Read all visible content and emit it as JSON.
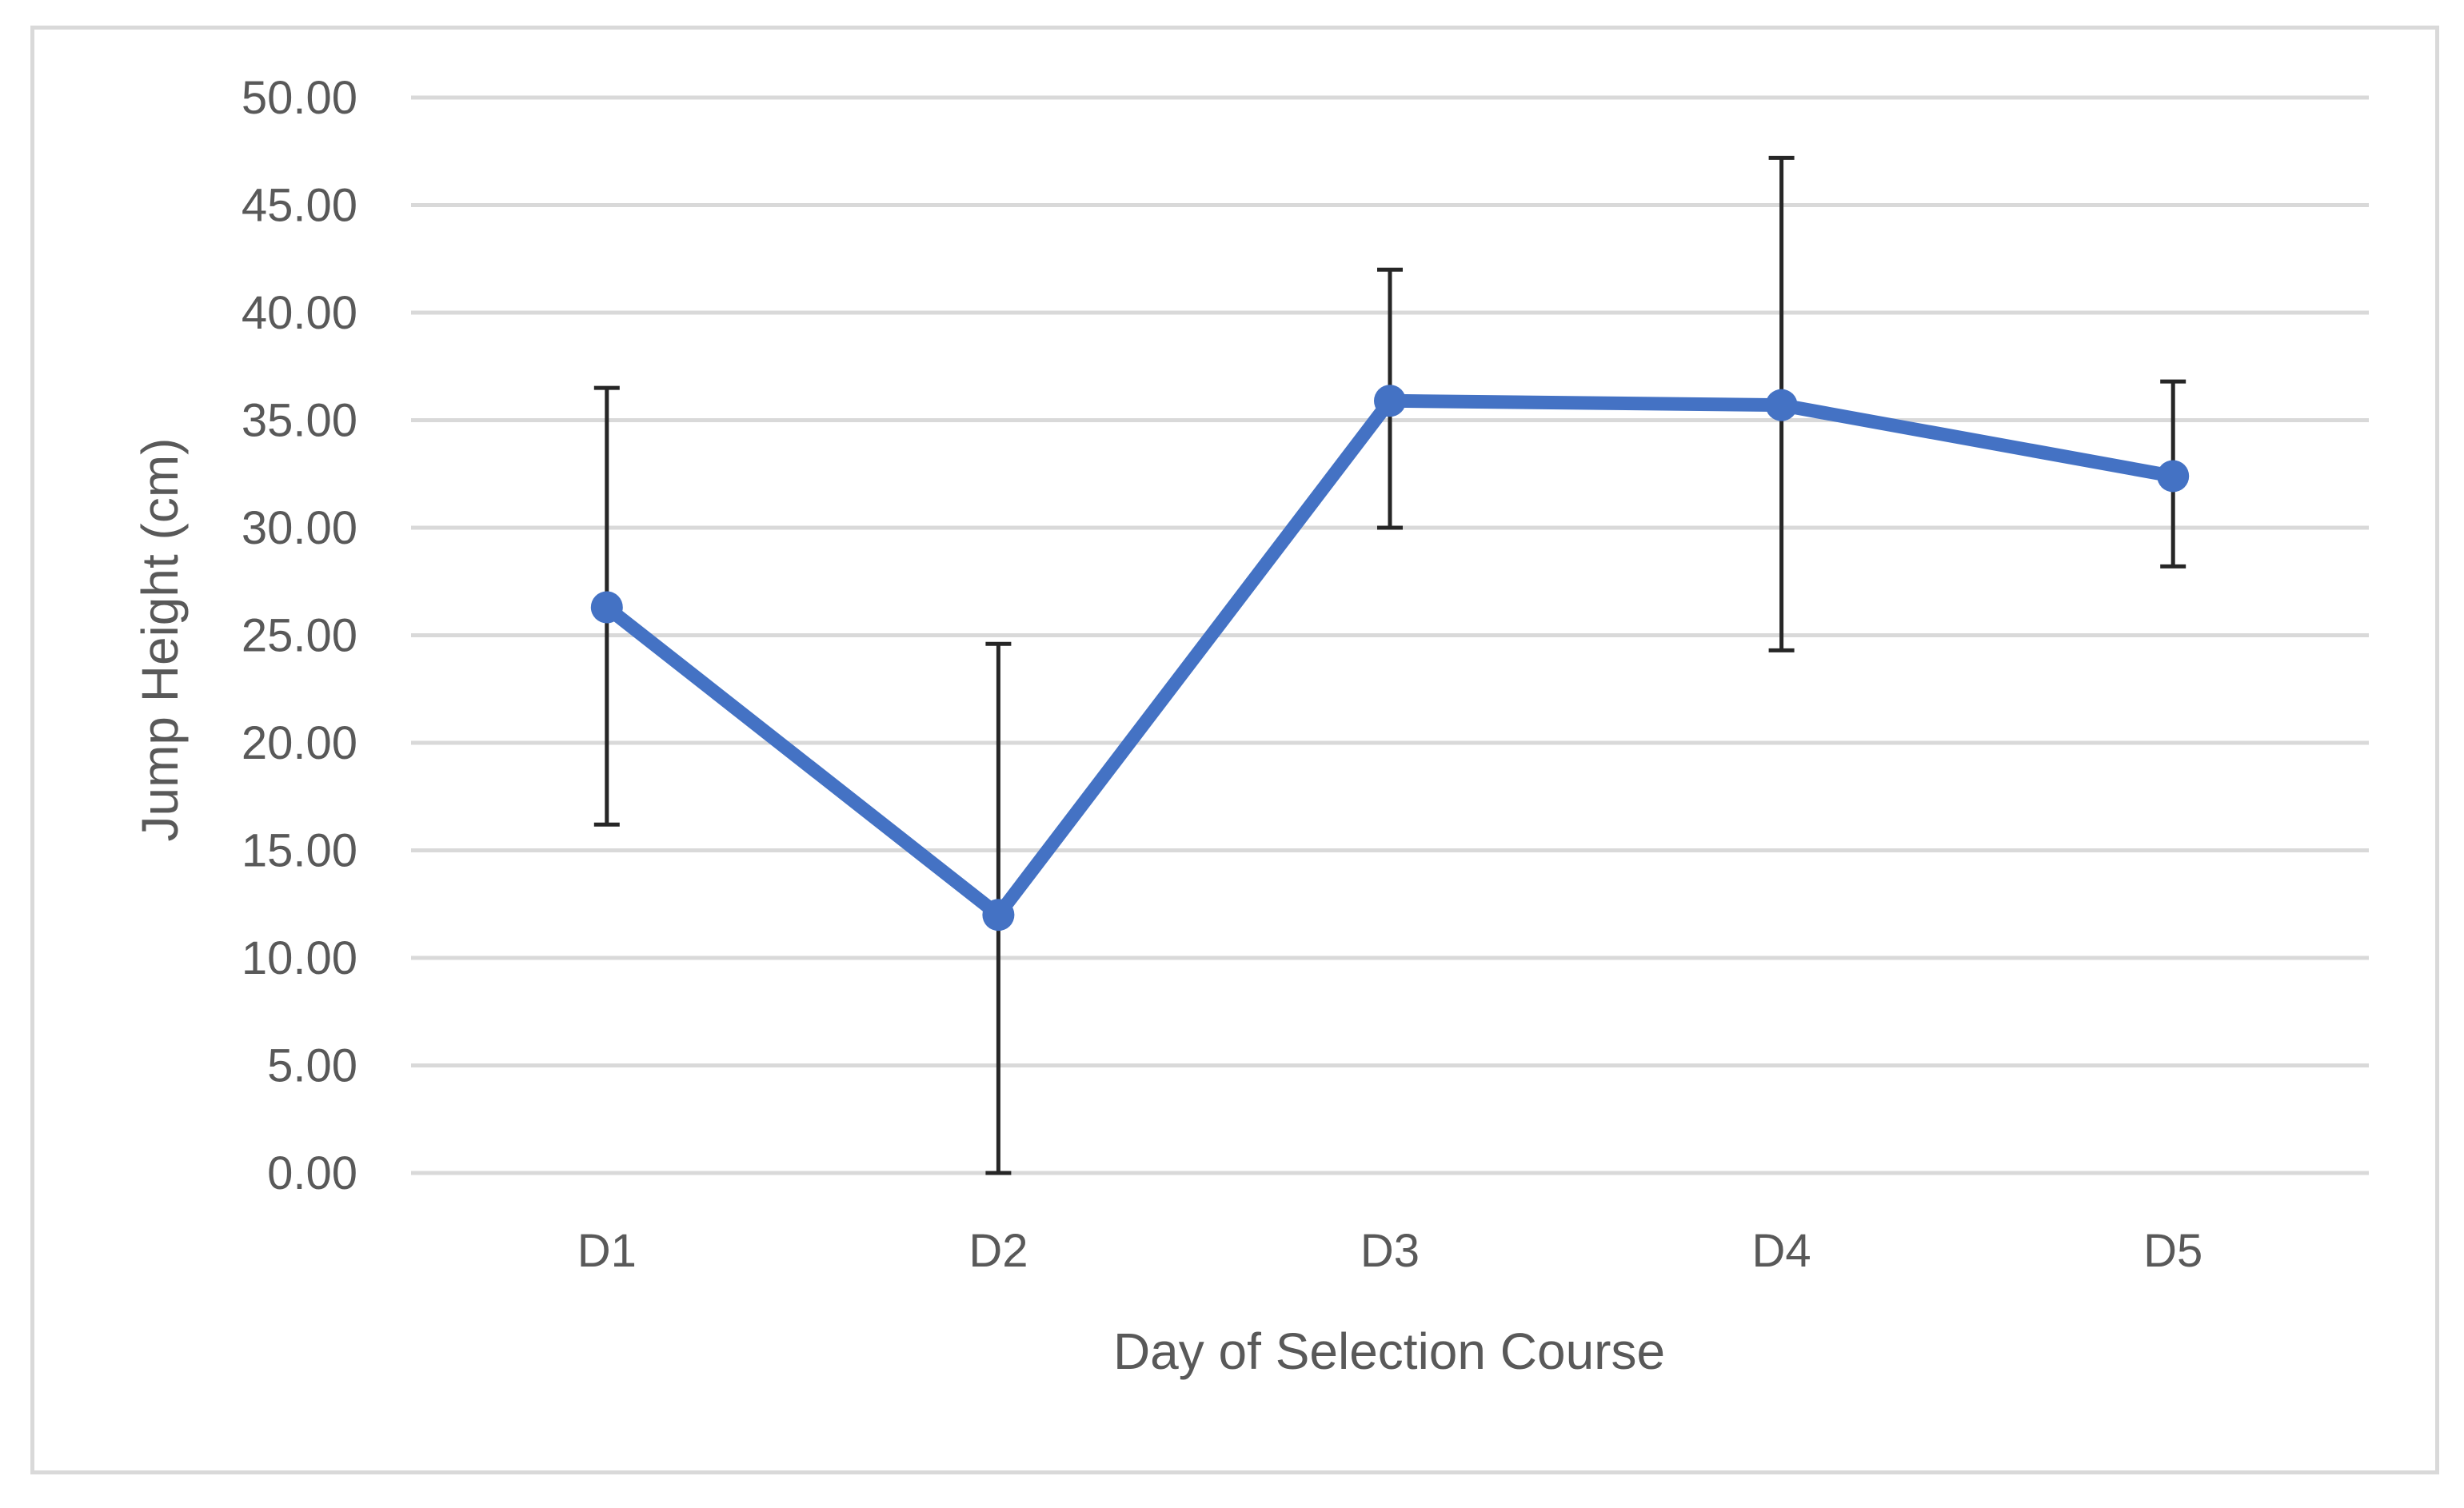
{
  "chart_data": {
    "type": "line",
    "title": "",
    "xlabel": "Day of Selection Course",
    "ylabel": "Jump Height (cm)",
    "categories": [
      "D1",
      "D2",
      "D3",
      "D4",
      "D5"
    ],
    "series": [
      {
        "values": [
          26.3,
          12.0,
          35.9,
          35.7,
          32.4
        ],
        "error_upper": [
          36.5,
          24.6,
          42.0,
          47.2,
          36.8
        ],
        "error_lower": [
          16.2,
          0.0,
          30.0,
          24.3,
          28.2
        ],
        "color": "#4472c4"
      }
    ],
    "ylim": [
      0,
      50
    ],
    "y_ticks": [
      "0.00",
      "5.00",
      "10.00",
      "15.00",
      "20.00",
      "25.00",
      "30.00",
      "35.00",
      "40.00",
      "45.00",
      "50.00"
    ],
    "y_tick_values": [
      0,
      5,
      10,
      15,
      20,
      25,
      30,
      35,
      40,
      45,
      50
    ],
    "grid": true,
    "legend": "none",
    "colors": {
      "line": "#4472c4",
      "error_bar": "#262626",
      "grid": "#d9d9d9",
      "text": "#595959",
      "frame": "#d9d9d9"
    }
  }
}
